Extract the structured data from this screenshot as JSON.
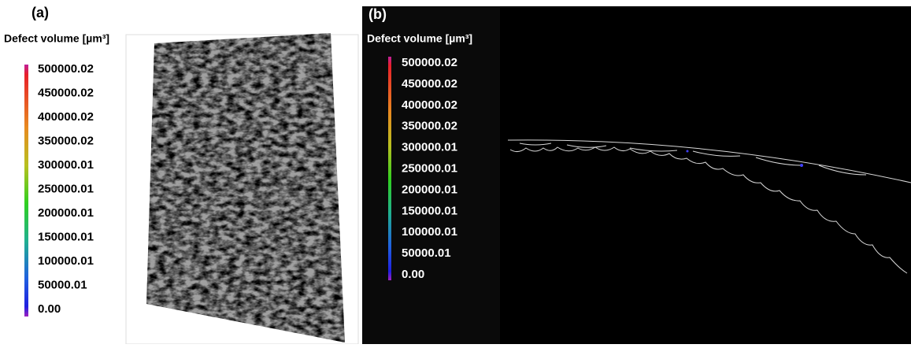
{
  "panels": [
    {
      "label": "(a)",
      "legend_title": "Defect volume [µm³]",
      "scale_labels": [
        "500000.02",
        "450000.02",
        "400000.02",
        "350000.02",
        "300000.01",
        "250000.01",
        "200000.01",
        "150000.01",
        "100000.01",
        "50000.01",
        "0.00"
      ]
    },
    {
      "label": "(b)",
      "legend_title": "Defect volume [µm³]",
      "scale_labels": [
        "500000.02",
        "450000.02",
        "400000.02",
        "350000.02",
        "300000.01",
        "250000.01",
        "200000.01",
        "150000.01",
        "100000.01",
        "50000.01",
        "0.00"
      ]
    }
  ]
}
